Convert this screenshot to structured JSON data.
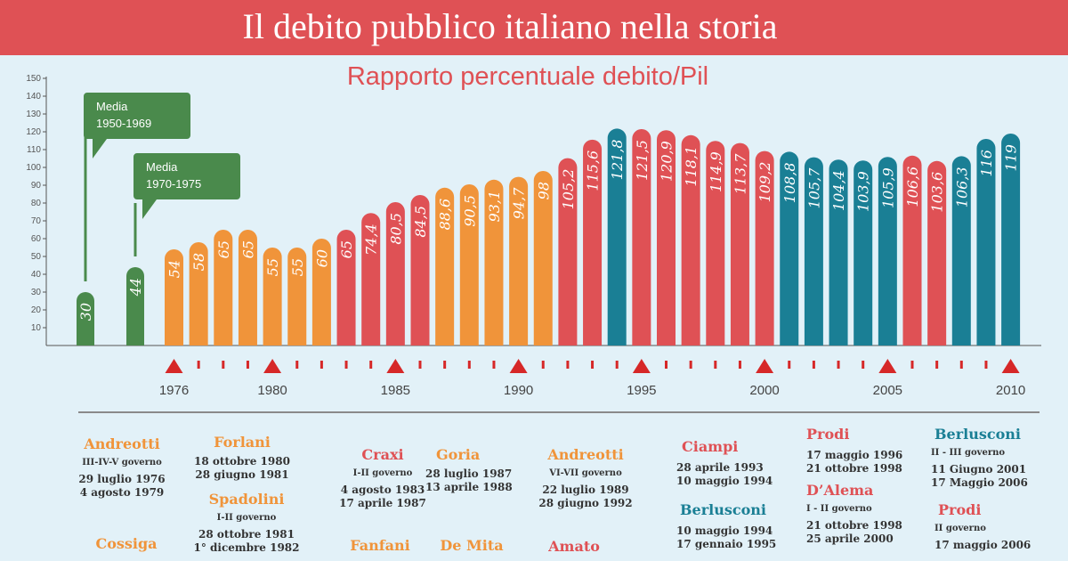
{
  "title": "Il debito pubblico italiano nella storia",
  "subtitle": "Rapporto percentuale debito/Pil",
  "colors": {
    "banner": "#df5155",
    "green": "#4a8a4c",
    "orange": "#f0943a",
    "red": "#df5155",
    "teal": "#1a7f95",
    "background": "#e2f1f8"
  },
  "chart_data": {
    "type": "bar",
    "title": "Rapporto percentuale debito/Pil",
    "ylim": [
      0,
      150
    ],
    "yticks": [
      10,
      20,
      30,
      40,
      50,
      60,
      70,
      80,
      90,
      100,
      110,
      120,
      130,
      140,
      150
    ],
    "years": [
      1976,
      1977,
      1978,
      1979,
      1980,
      1981,
      1982,
      1983,
      1984,
      1985,
      1986,
      1987,
      1988,
      1989,
      1990,
      1991,
      1992,
      1993,
      1994,
      1995,
      1996,
      1997,
      1998,
      1999,
      2000,
      2001,
      2002,
      2003,
      2004,
      2005,
      2006,
      2007,
      2008,
      2009,
      2010
    ],
    "year_labels": [
      "1976",
      "1980",
      "1985",
      "1990",
      "1995",
      "2000",
      "2005",
      "2010"
    ],
    "averages": [
      {
        "label": "30",
        "value": 30,
        "callout_line1": "Media",
        "callout_line2": "1950-1969"
      },
      {
        "label": "44",
        "value": 44,
        "callout_line1": "Media",
        "callout_line2": "1970-1975"
      }
    ],
    "bars": [
      {
        "label": "54",
        "value": 54,
        "series": "orange"
      },
      {
        "label": "58",
        "value": 58,
        "series": "orange"
      },
      {
        "label": "65",
        "value": 65,
        "series": "orange"
      },
      {
        "label": "65",
        "value": 65,
        "series": "orange"
      },
      {
        "label": "55",
        "value": 55,
        "series": "orange"
      },
      {
        "label": "55",
        "value": 55,
        "series": "orange"
      },
      {
        "label": "60",
        "value": 60,
        "series": "orange"
      },
      {
        "label": "65",
        "value": 65,
        "series": "red"
      },
      {
        "label": "74,4",
        "value": 74.4,
        "series": "red"
      },
      {
        "label": "80,5",
        "value": 80.5,
        "series": "red"
      },
      {
        "label": "84,5",
        "value": 84.5,
        "series": "red"
      },
      {
        "label": "88,6",
        "value": 88.6,
        "series": "orange"
      },
      {
        "label": "90,5",
        "value": 90.5,
        "series": "orange"
      },
      {
        "label": "93,1",
        "value": 93.1,
        "series": "orange"
      },
      {
        "label": "94,7",
        "value": 94.7,
        "series": "orange"
      },
      {
        "label": "98",
        "value": 98,
        "series": "orange"
      },
      {
        "label": "105,2",
        "value": 105.2,
        "series": "red"
      },
      {
        "label": "115,6",
        "value": 115.6,
        "series": "red"
      },
      {
        "label": "121,8",
        "value": 121.8,
        "series": "teal"
      },
      {
        "label": "121,5",
        "value": 121.5,
        "series": "red"
      },
      {
        "label": "120,9",
        "value": 120.9,
        "series": "red"
      },
      {
        "label": "118,1",
        "value": 118.1,
        "series": "red"
      },
      {
        "label": "114,9",
        "value": 114.9,
        "series": "red"
      },
      {
        "label": "113,7",
        "value": 113.7,
        "series": "red"
      },
      {
        "label": "109,2",
        "value": 109.2,
        "series": "red"
      },
      {
        "label": "108,8",
        "value": 108.8,
        "series": "teal"
      },
      {
        "label": "105,7",
        "value": 105.7,
        "series": "teal"
      },
      {
        "label": "104,4",
        "value": 104.4,
        "series": "teal"
      },
      {
        "label": "103,9",
        "value": 103.9,
        "series": "teal"
      },
      {
        "label": "105,9",
        "value": 105.9,
        "series": "teal"
      },
      {
        "label": "106,6",
        "value": 106.6,
        "series": "red"
      },
      {
        "label": "103,6",
        "value": 103.6,
        "series": "red"
      },
      {
        "label": "106,3",
        "value": 106.3,
        "series": "teal"
      },
      {
        "label": "116",
        "value": 116,
        "series": "teal"
      },
      {
        "label": "119",
        "value": 119,
        "series": "teal"
      }
    ]
  },
  "cabinets": [
    {
      "name": "Andreotti",
      "gov": "III-IV-V governo",
      "from": "29 luglio 1976",
      "to": "4 agosto 1979",
      "color": "orange"
    },
    {
      "name": "Cossiga",
      "gov": "",
      "from": "",
      "to": "",
      "color": "orange"
    },
    {
      "name": "Forlani",
      "gov": "",
      "from": "18 ottobre 1980",
      "to": "28 giugno 1981",
      "color": "orange"
    },
    {
      "name": "Spadolini",
      "gov": "I-II governo",
      "from": "28 ottobre 1981",
      "to": "1° dicembre 1982",
      "color": "orange"
    },
    {
      "name": "Craxi",
      "gov": "I-II governo",
      "from": "4 agosto 1983",
      "to": "17 aprile 1987",
      "color": "red"
    },
    {
      "name": "Fanfani",
      "gov": "",
      "from": "",
      "to": "",
      "color": "orange"
    },
    {
      "name": "Goria",
      "gov": "",
      "from": "28 luglio 1987",
      "to": "13 aprile 1988",
      "color": "orange"
    },
    {
      "name": "De Mita",
      "gov": "",
      "from": "",
      "to": "",
      "color": "orange"
    },
    {
      "name": "Andreotti",
      "gov": "VI-VII governo",
      "from": "22 luglio 1989",
      "to": "28 giugno 1992",
      "color": "orange"
    },
    {
      "name": "Amato",
      "gov": "",
      "from": "",
      "to": "",
      "color": "red"
    },
    {
      "name": "Ciampi",
      "gov": "",
      "from": "28 aprile 1993",
      "to": "10 maggio 1994",
      "color": "red"
    },
    {
      "name": "Berlusconi",
      "gov": "",
      "from": "10 maggio 1994",
      "to": "17 gennaio 1995",
      "color": "teal"
    },
    {
      "name": "Prodi",
      "gov": "",
      "from": "17 maggio 1996",
      "to": "21 ottobre 1998",
      "color": "red"
    },
    {
      "name": "D’Alema",
      "gov": "I - II governo",
      "from": "21 ottobre 1998",
      "to": "25 aprile 2000",
      "color": "red"
    },
    {
      "name": "Berlusconi",
      "gov": "II - III governo",
      "from": "11 Giugno 2001",
      "to": "17 Maggio 2006",
      "color": "teal"
    },
    {
      "name": "Prodi",
      "gov": "II governo",
      "from": "17 maggio 2006",
      "to": "",
      "color": "red"
    }
  ]
}
